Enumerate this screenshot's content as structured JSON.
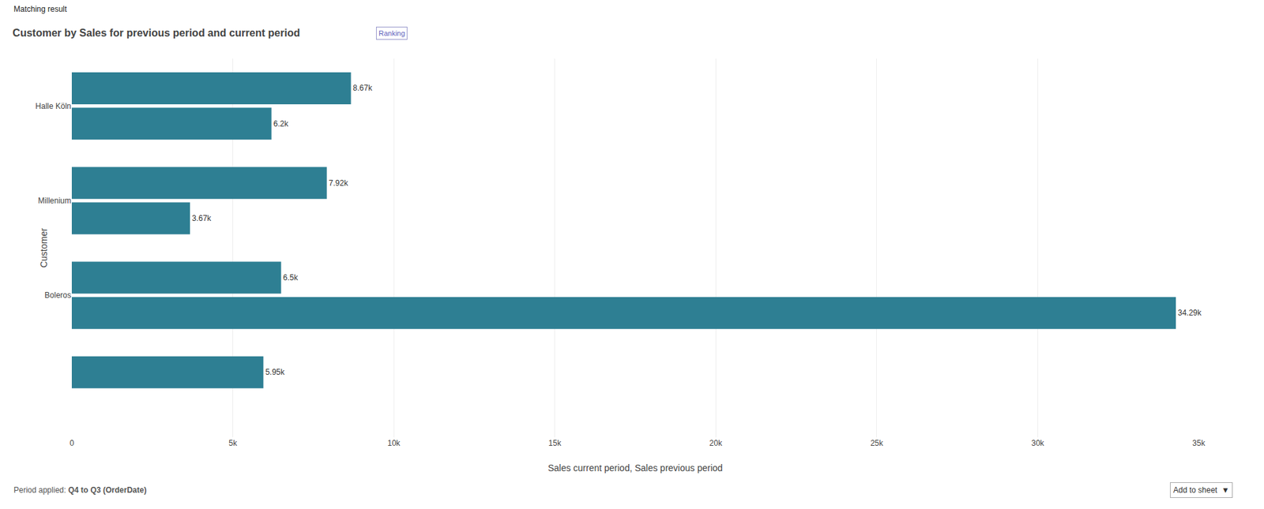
{
  "chart_data": {
    "type": "bar",
    "orientation": "horizontal",
    "title": "Customer by Sales for previous period and current period",
    "xlabel": "Sales current period, Sales previous period",
    "ylabel": "Customer",
    "categories": [
      "Halle Köln",
      "Millenium",
      "Boleros",
      null
    ],
    "series": [
      {
        "color": "#2e7f93",
        "values": [
          8670,
          7920,
          6500,
          5950
        ],
        "value_labels": [
          "8.67k",
          "7.92k",
          "6.5k",
          "5.95k"
        ]
      },
      {
        "color": "#2e7f93",
        "values": [
          6200,
          3670,
          34290,
          null
        ],
        "value_labels": [
          "6.2k",
          "3.67k",
          "34.29k",
          null
        ]
      }
    ],
    "data_labels": true,
    "xlim": [
      0,
      35000
    ],
    "xticks": [
      0,
      {
        "value": 5000,
        "label": "5k"
      },
      {
        "value": 10000,
        "label": "10k"
      },
      {
        "value": 15000,
        "label": "15k"
      },
      {
        "value": 20000,
        "label": "20k"
      },
      {
        "value": 25000,
        "label": "25k"
      },
      {
        "value": 30000,
        "label": "30k"
      },
      {
        "value": 35000,
        "label": "35k"
      }
    ],
    "grid": true,
    "annotations": [
      "Matching result",
      "Ranking",
      "Period applied:",
      "Q4 to Q3 (OrderDate)",
      "Add to sheet  ▼"
    ]
  }
}
